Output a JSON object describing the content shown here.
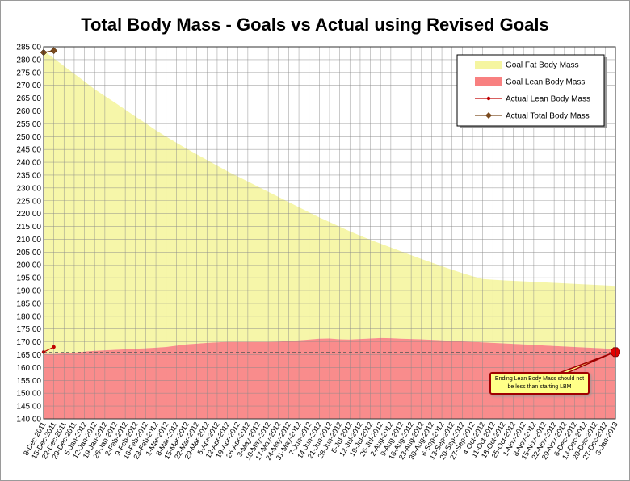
{
  "chart_data": {
    "type": "area",
    "title": "Total Body Mass - Goals vs Actual using Revised Goals",
    "ylim": [
      140,
      285
    ],
    "ytick_step": 5,
    "grid": true,
    "legend_position": "top-right",
    "x_labels": [
      "8-Dec-2011",
      "15-Dec-2011",
      "22-Dec-2011",
      "29-Dec-2011",
      "5-Jan-2012",
      "12-Jan-2012",
      "19-Jan-2012",
      "26-Jan-2012",
      "2-Feb-2012",
      "9-Feb-2012",
      "16-Feb-2012",
      "23-Feb-2012",
      "1-Mar-2012",
      "8-Mar-2012",
      "15-Mar-2012",
      "22-Mar-2012",
      "29-Mar-2012",
      "5-Apr-2012",
      "12-Apr-2012",
      "19-Apr-2012",
      "26-Apr-2012",
      "3-May-2012",
      "10-May-2012",
      "17-May-2012",
      "24-May-2012",
      "31-May-2012",
      "7-Jun-2012",
      "14-Jun-2012",
      "21-Jun-2012",
      "28-Jun-2012",
      "5-Jul-2012",
      "12-Jul-2012",
      "19-Jul-2012",
      "26-Jul-2012",
      "2-Aug-2012",
      "9-Aug-2012",
      "16-Aug-2012",
      "23-Aug-2012",
      "30-Aug-2012",
      "6-Sep-2012",
      "13-Sep-2012",
      "20-Sep-2012",
      "27-Sep-2012",
      "4-Oct-2012",
      "11-Oct-2012",
      "18-Oct-2012",
      "25-Oct-2012",
      "1-Nov-2012",
      "8-Nov-2012",
      "15-Nov-2012",
      "22-Nov-2012",
      "29-Nov-2012",
      "6-Dec-2012",
      "13-Dec-2012",
      "20-Dec-2012",
      "27-Dec-2012",
      "3-Jan-2013"
    ],
    "series": [
      {
        "name": "Goal Fat Body Mass",
        "color": "#f5f5a0",
        "values": [
          283.5,
          280.5,
          277.5,
          274.5,
          271.5,
          268.5,
          265.8,
          263.2,
          260.5,
          257.8,
          255.2,
          252.5,
          250,
          247.6,
          245.3,
          243.1,
          240.9,
          238.7,
          236.5,
          234.5,
          232.5,
          230.5,
          228.5,
          226.5,
          224.5,
          222.5,
          220.5,
          218.5,
          216.7,
          214.9,
          213.1,
          211.4,
          209.8,
          208.3,
          206.8,
          205.3,
          203.8,
          202.3,
          200.9,
          199.5,
          198.1,
          196.8,
          195.6,
          194.5,
          194.2,
          194,
          193.8,
          193.6,
          193.4,
          193.2,
          193,
          192.8,
          192.6,
          192.4,
          192.2,
          192,
          191.8
        ]
      },
      {
        "name": "Goal Lean Body Mass",
        "color": "#f88080",
        "values": [
          165.3,
          165.3,
          165.5,
          165.8,
          166.2,
          166.5,
          166.7,
          166.9,
          167.1,
          167.3,
          167.5,
          167.7,
          168,
          168.5,
          169,
          169.3,
          169.6,
          169.8,
          170,
          170,
          170,
          170,
          170,
          170.1,
          170.3,
          170.6,
          170.9,
          171.2,
          171.3,
          171,
          170.9,
          171.1,
          171.3,
          171.5,
          171.4,
          171.2,
          171.1,
          171,
          170.8,
          170.6,
          170.4,
          170.2,
          170,
          169.8,
          169.6,
          169.4,
          169.2,
          169,
          168.8,
          168.6,
          168.4,
          168.2,
          168,
          167.8,
          167.6,
          167.4,
          167.2
        ]
      },
      {
        "name": "Actual Lean Body Mass",
        "color": "#c00000",
        "x_index": [
          0,
          1
        ],
        "values": [
          166,
          168
        ]
      },
      {
        "name": "Actual Total Body Mass",
        "color": "#7b4a1e",
        "x_index": [
          0,
          1
        ],
        "values": [
          282.8,
          283.5
        ]
      }
    ],
    "reference_line": {
      "value": 166
    },
    "end_marker": {
      "value": 166
    },
    "annotation": "Ending Lean Body  Mass should not be less than starting LBM"
  }
}
